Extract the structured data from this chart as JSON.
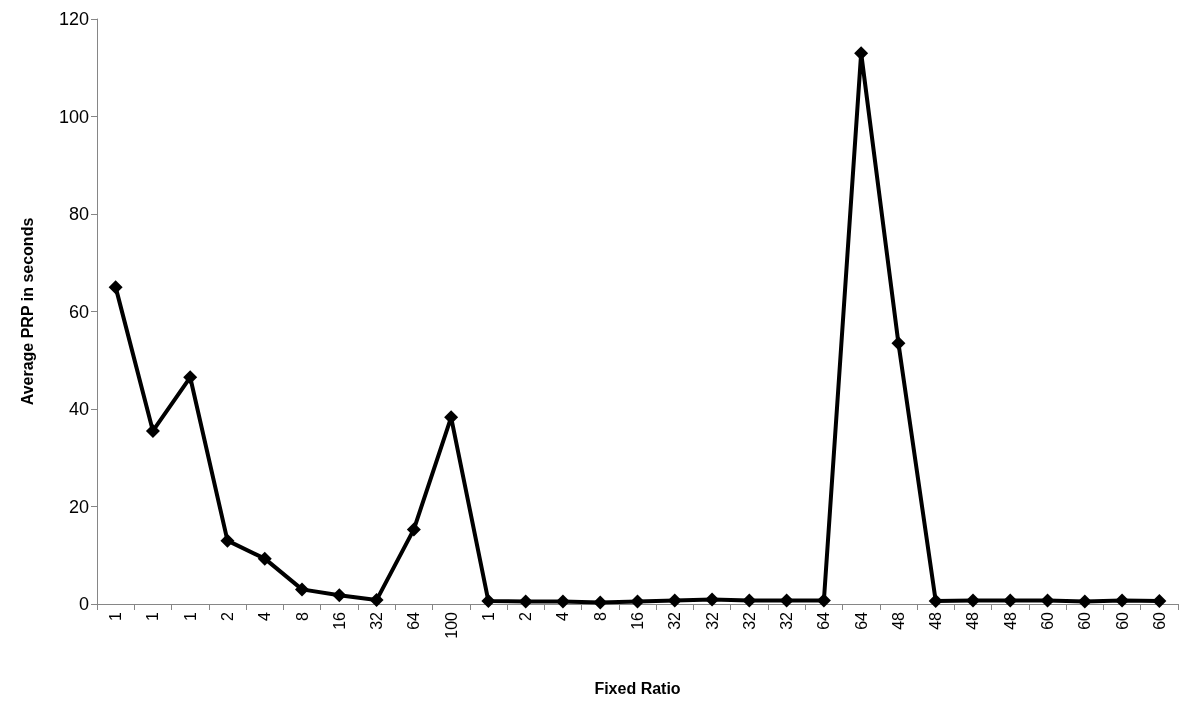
{
  "chart_data": {
    "type": "line",
    "xlabel": "Fixed Ratio",
    "ylabel": "Average PRP in seconds",
    "categories": [
      "1",
      "1",
      "1",
      "2",
      "4",
      "8",
      "16",
      "32",
      "64",
      "100",
      "1",
      "2",
      "4",
      "8",
      "16",
      "32",
      "32",
      "32",
      "32",
      "64",
      "64",
      "48",
      "48",
      "48",
      "48",
      "60",
      "60",
      "60",
      "60"
    ],
    "series": [
      {
        "color": "#000000",
        "values": [
          65,
          35.5,
          46.5,
          13,
          9.3,
          3,
          1.8,
          0.8,
          15.3,
          38.3,
          0.6,
          0.5,
          0.5,
          0.3,
          0.5,
          0.7,
          0.9,
          0.7,
          0.7,
          0.7,
          113,
          53.5,
          0.6,
          0.7,
          0.7,
          0.7,
          0.5,
          0.7,
          0.6
        ]
      }
    ],
    "ylim": [
      0,
      120
    ],
    "yticks": [
      0,
      20,
      40,
      60,
      80,
      100,
      120
    ],
    "grid": false,
    "marker": "diamond",
    "line_style": "solid"
  }
}
